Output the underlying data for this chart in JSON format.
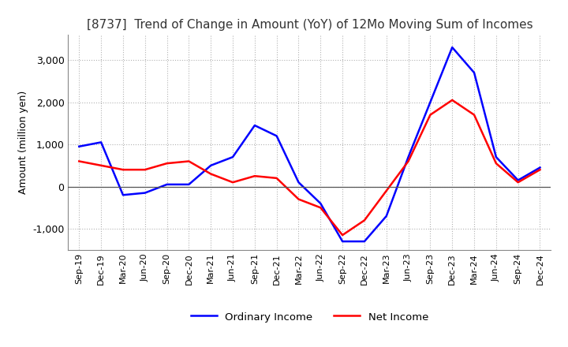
{
  "title": "[8737]  Trend of Change in Amount (YoY) of 12Mo Moving Sum of Incomes",
  "ylabel": "Amount (million yen)",
  "x_labels": [
    "Sep-19",
    "Dec-19",
    "Mar-20",
    "Jun-20",
    "Sep-20",
    "Dec-20",
    "Mar-21",
    "Jun-21",
    "Sep-21",
    "Dec-21",
    "Mar-22",
    "Jun-22",
    "Sep-22",
    "Dec-22",
    "Mar-23",
    "Jun-23",
    "Sep-23",
    "Dec-23",
    "Mar-24",
    "Jun-24",
    "Sep-24",
    "Dec-24"
  ],
  "ordinary_income": [
    950,
    1050,
    -200,
    -150,
    50,
    50,
    500,
    700,
    1450,
    1200,
    100,
    -400,
    -1300,
    -1300,
    -700,
    700,
    2000,
    3300,
    2700,
    700,
    150,
    450
  ],
  "net_income": [
    600,
    500,
    400,
    400,
    550,
    600,
    300,
    100,
    250,
    200,
    -300,
    -500,
    -1150,
    -800,
    -100,
    600,
    1700,
    2050,
    1700,
    550,
    100,
    400
  ],
  "ordinary_color": "#0000FF",
  "net_color": "#FF0000",
  "ylim": [
    -1500,
    3600
  ],
  "yticks": [
    -1000,
    0,
    1000,
    2000,
    3000
  ],
  "background_color": "#FFFFFF",
  "grid_color": "#AAAAAA",
  "title_fontsize": 11,
  "legend_labels": [
    "Ordinary Income",
    "Net Income"
  ]
}
